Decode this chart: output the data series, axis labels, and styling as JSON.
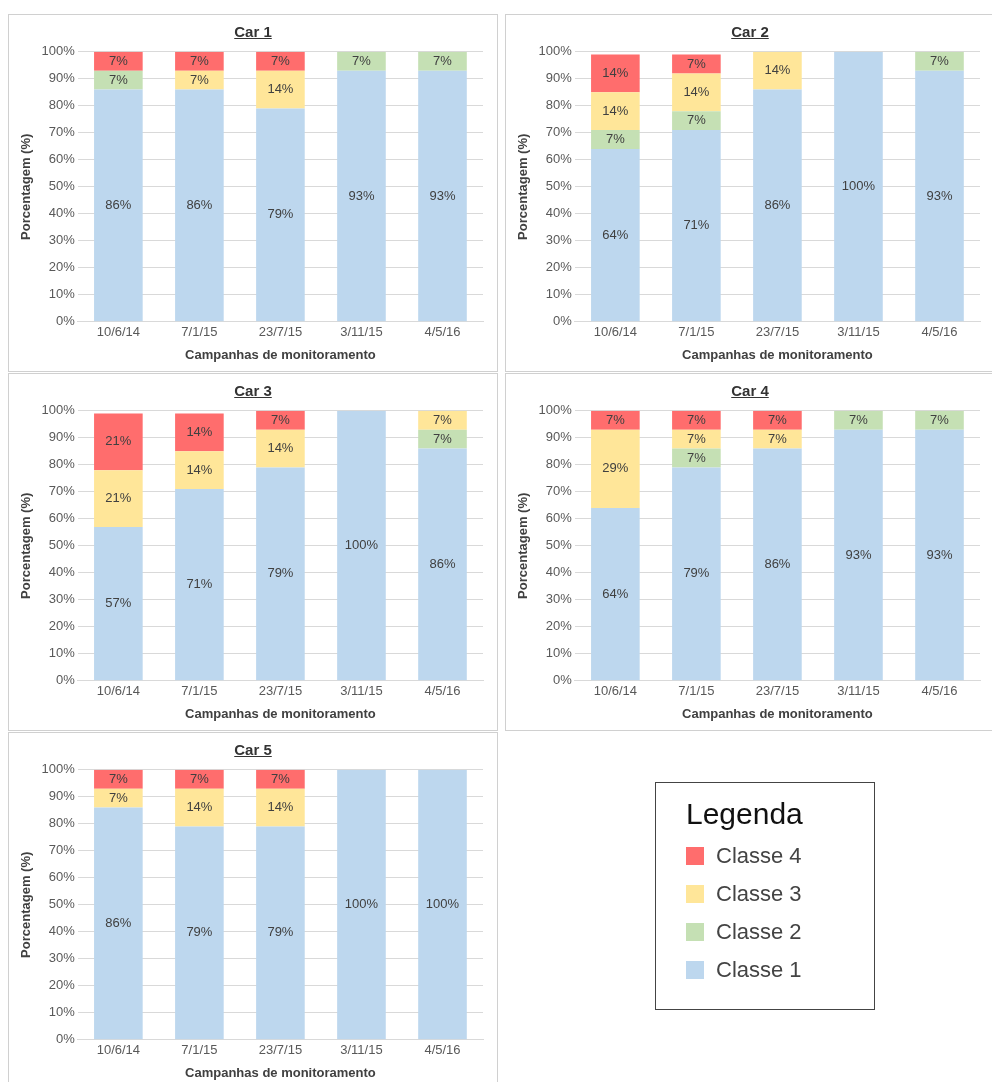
{
  "chart_data": [
    {
      "type": "bar",
      "stacked": true,
      "title": "Car 1",
      "xlabel": "Campanhas de monitoramento",
      "ylabel": "Porcentagem (%)",
      "categories": [
        "10/6/14",
        "7/1/15",
        "23/7/15",
        "3/11/15",
        "4/5/16"
      ],
      "ylim": [
        0,
        100
      ],
      "yticks": [
        {
          "value": 0,
          "label": "0%"
        },
        {
          "value": 10,
          "label": "10%"
        },
        {
          "value": 20,
          "label": "20%"
        },
        {
          "value": 30,
          "label": "30%"
        },
        {
          "value": 40,
          "label": "40%"
        },
        {
          "value": 50,
          "label": "50%"
        },
        {
          "value": 60,
          "label": "60%"
        },
        {
          "value": 70,
          "label": "70%"
        },
        {
          "value": 80,
          "label": "80%"
        },
        {
          "value": 90,
          "label": "90%"
        },
        {
          "value": 100,
          "label": "100%"
        }
      ],
      "grid": "y",
      "series": [
        {
          "color": "#bdd7ee",
          "values": [
            86,
            86,
            79,
            93,
            93
          ],
          "value_labels": [
            "86%",
            "86%",
            "79%",
            "93%",
            "93%"
          ]
        },
        {
          "color": "#c5e0b4",
          "values": [
            7,
            null,
            null,
            7,
            7
          ],
          "value_labels": [
            "7%",
            null,
            null,
            "7%",
            "7%"
          ]
        },
        {
          "color": "#ffe699",
          "values": [
            null,
            7,
            14,
            null,
            null
          ],
          "value_labels": [
            null,
            "7%",
            "14%",
            null,
            null
          ]
        },
        {
          "color": "#ff6d6d",
          "values": [
            7,
            7,
            7,
            null,
            null
          ],
          "value_labels": [
            "7%",
            "7%",
            "7%",
            null,
            null
          ]
        }
      ]
    },
    {
      "type": "bar",
      "stacked": true,
      "title": "Car 2",
      "xlabel": "Campanhas de monitoramento",
      "ylabel": "Porcentagem (%)",
      "categories": [
        "10/6/14",
        "7/1/15",
        "23/7/15",
        "3/11/15",
        "4/5/16"
      ],
      "ylim": [
        0,
        100
      ],
      "yticks": [
        {
          "value": 0,
          "label": "0%"
        },
        {
          "value": 10,
          "label": "10%"
        },
        {
          "value": 20,
          "label": "20%"
        },
        {
          "value": 30,
          "label": "30%"
        },
        {
          "value": 40,
          "label": "40%"
        },
        {
          "value": 50,
          "label": "50%"
        },
        {
          "value": 60,
          "label": "60%"
        },
        {
          "value": 70,
          "label": "70%"
        },
        {
          "value": 80,
          "label": "80%"
        },
        {
          "value": 90,
          "label": "90%"
        },
        {
          "value": 100,
          "label": "100%"
        }
      ],
      "grid": "y",
      "series": [
        {
          "color": "#bdd7ee",
          "values": [
            64,
            71,
            86,
            100,
            93
          ],
          "value_labels": [
            "64%",
            "71%",
            "86%",
            "100%",
            "93%"
          ]
        },
        {
          "color": "#c5e0b4",
          "values": [
            7,
            7,
            null,
            null,
            7
          ],
          "value_labels": [
            "7%",
            "7%",
            null,
            null,
            "7%"
          ]
        },
        {
          "color": "#ffe699",
          "values": [
            14,
            14,
            14,
            null,
            null
          ],
          "value_labels": [
            "14%",
            "14%",
            "14%",
            null,
            null
          ]
        },
        {
          "color": "#ff6d6d",
          "values": [
            14,
            7,
            null,
            null,
            null
          ],
          "value_labels": [
            "14%",
            "7%",
            null,
            null,
            null
          ]
        }
      ]
    },
    {
      "type": "bar",
      "stacked": true,
      "title": "Car 3",
      "xlabel": "Campanhas de monitoramento",
      "ylabel": "Porcentagem (%)",
      "categories": [
        "10/6/14",
        "7/1/15",
        "23/7/15",
        "3/11/15",
        "4/5/16"
      ],
      "ylim": [
        0,
        100
      ],
      "yticks": [
        {
          "value": 0,
          "label": "0%"
        },
        {
          "value": 10,
          "label": "10%"
        },
        {
          "value": 20,
          "label": "20%"
        },
        {
          "value": 30,
          "label": "30%"
        },
        {
          "value": 40,
          "label": "40%"
        },
        {
          "value": 50,
          "label": "50%"
        },
        {
          "value": 60,
          "label": "60%"
        },
        {
          "value": 70,
          "label": "70%"
        },
        {
          "value": 80,
          "label": "80%"
        },
        {
          "value": 90,
          "label": "90%"
        },
        {
          "value": 100,
          "label": "100%"
        }
      ],
      "grid": "y",
      "series": [
        {
          "color": "#bdd7ee",
          "values": [
            57,
            71,
            79,
            100,
            86
          ],
          "value_labels": [
            "57%",
            "71%",
            "79%",
            "100%",
            "86%"
          ]
        },
        {
          "color": "#c5e0b4",
          "values": [
            null,
            null,
            null,
            null,
            7
          ],
          "value_labels": [
            null,
            null,
            null,
            null,
            "7%"
          ]
        },
        {
          "color": "#ffe699",
          "values": [
            21,
            14,
            14,
            null,
            7
          ],
          "value_labels": [
            "21%",
            "14%",
            "14%",
            null,
            "7%"
          ]
        },
        {
          "color": "#ff6d6d",
          "values": [
            21,
            14,
            7,
            null,
            null
          ],
          "value_labels": [
            "21%",
            "14%",
            "7%",
            null,
            null
          ]
        }
      ]
    },
    {
      "type": "bar",
      "stacked": true,
      "title": "Car 4",
      "xlabel": "Campanhas de monitoramento",
      "ylabel": "Porcentagem (%)",
      "categories": [
        "10/6/14",
        "7/1/15",
        "23/7/15",
        "3/11/15",
        "4/5/16"
      ],
      "ylim": [
        0,
        100
      ],
      "yticks": [
        {
          "value": 0,
          "label": "0%"
        },
        {
          "value": 10,
          "label": "10%"
        },
        {
          "value": 20,
          "label": "20%"
        },
        {
          "value": 30,
          "label": "30%"
        },
        {
          "value": 40,
          "label": "40%"
        },
        {
          "value": 50,
          "label": "50%"
        },
        {
          "value": 60,
          "label": "60%"
        },
        {
          "value": 70,
          "label": "70%"
        },
        {
          "value": 80,
          "label": "80%"
        },
        {
          "value": 90,
          "label": "90%"
        },
        {
          "value": 100,
          "label": "100%"
        }
      ],
      "grid": "y",
      "series": [
        {
          "color": "#bdd7ee",
          "values": [
            64,
            79,
            86,
            93,
            93
          ],
          "value_labels": [
            "64%",
            "79%",
            "86%",
            "93%",
            "93%"
          ]
        },
        {
          "color": "#c5e0b4",
          "values": [
            null,
            7,
            null,
            7,
            7
          ],
          "value_labels": [
            null,
            "7%",
            null,
            "7%",
            "7%"
          ]
        },
        {
          "color": "#ffe699",
          "values": [
            29,
            7,
            7,
            null,
            null
          ],
          "value_labels": [
            "29%",
            "7%",
            "7%",
            null,
            null
          ]
        },
        {
          "color": "#ff6d6d",
          "values": [
            7,
            7,
            7,
            null,
            null
          ],
          "value_labels": [
            "7%",
            "7%",
            "7%",
            null,
            null
          ]
        }
      ]
    },
    {
      "type": "bar",
      "stacked": true,
      "title": "Car 5",
      "xlabel": "Campanhas de monitoramento",
      "ylabel": "Porcentagem (%)",
      "categories": [
        "10/6/14",
        "7/1/15",
        "23/7/15",
        "3/11/15",
        "4/5/16"
      ],
      "ylim": [
        0,
        100
      ],
      "yticks": [
        {
          "value": 0,
          "label": "0%"
        },
        {
          "value": 10,
          "label": "10%"
        },
        {
          "value": 20,
          "label": "20%"
        },
        {
          "value": 30,
          "label": "30%"
        },
        {
          "value": 40,
          "label": "40%"
        },
        {
          "value": 50,
          "label": "50%"
        },
        {
          "value": 60,
          "label": "60%"
        },
        {
          "value": 70,
          "label": "70%"
        },
        {
          "value": 80,
          "label": "80%"
        },
        {
          "value": 90,
          "label": "90%"
        },
        {
          "value": 100,
          "label": "100%"
        }
      ],
      "grid": "y",
      "legend": "right",
      "legend_title": "Legenda",
      "series": [
        {
          "name": "Classe 1",
          "color": "#bdd7ee",
          "values": [
            86,
            79,
            79,
            100,
            100
          ],
          "value_labels": [
            "86%",
            "79%",
            "79%",
            "100%",
            "100%"
          ]
        },
        {
          "name": "Classe 2",
          "color": "#c5e0b4",
          "values": [
            null,
            null,
            null,
            null,
            null
          ]
        },
        {
          "name": "Classe 3",
          "color": "#ffe699",
          "values": [
            7,
            14,
            14,
            null,
            null
          ],
          "value_labels": [
            "7%",
            "14%",
            "14%",
            null,
            null
          ]
        },
        {
          "name": "Classe 4",
          "color": "#ff6d6d",
          "values": [
            7,
            7,
            7,
            null,
            null
          ],
          "value_labels": [
            "7%",
            "7%",
            "7%",
            null,
            null
          ]
        }
      ]
    }
  ]
}
